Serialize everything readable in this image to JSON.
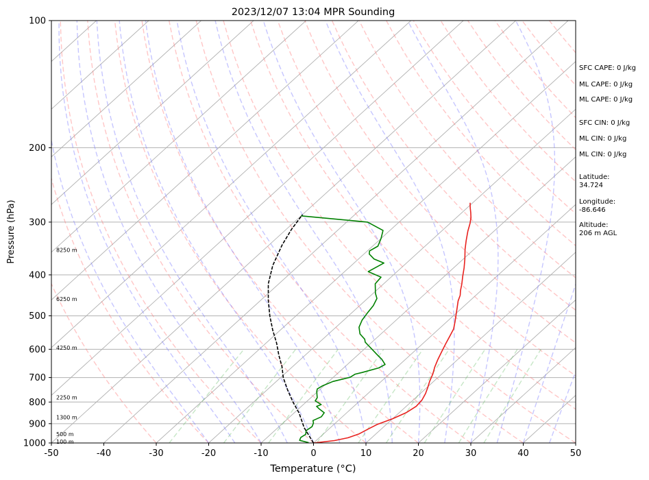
{
  "chart_data": {
    "type": "line",
    "title": "2023/12/07 13:04 MPR Sounding",
    "xlabel": "Temperature (°C)",
    "ylabel": "Pressure (hPa)",
    "xlim": [
      -50,
      50
    ],
    "ylim": [
      1000,
      100
    ],
    "y_scale": "log",
    "x_ticks": [
      -50,
      -40,
      -30,
      -20,
      -10,
      0,
      10,
      20,
      30,
      40,
      50
    ],
    "y_ticks": [
      100,
      200,
      300,
      400,
      500,
      600,
      700,
      800,
      900,
      1000
    ],
    "grid": true,
    "height_labels": [
      {
        "text": "8250 m",
        "p": 349
      },
      {
        "text": "6250 m",
        "p": 456
      },
      {
        "text": "4250 m",
        "p": 595
      },
      {
        "text": "2250 m",
        "p": 780
      },
      {
        "text": "1300 m",
        "p": 870
      },
      {
        "text": "500 m",
        "p": 952
      },
      {
        "text": "100 m",
        "p": 993
      }
    ],
    "series": [
      {
        "color": "#e8201d",
        "points": [
          [
            -20.5,
            270
          ],
          [
            -19.5,
            277
          ],
          [
            -18.3,
            285
          ],
          [
            -17.2,
            293
          ],
          [
            -16.2,
            302
          ],
          [
            -15.0,
            315
          ],
          [
            -13.3,
            332
          ],
          [
            -11.7,
            348
          ],
          [
            -9.7,
            367
          ],
          [
            -8.0,
            385
          ],
          [
            -6.5,
            403
          ],
          [
            -5.0,
            421
          ],
          [
            -3.9,
            436
          ],
          [
            -3.0,
            447
          ],
          [
            -2.2,
            461
          ],
          [
            -1.0,
            478
          ],
          [
            0.3,
            497
          ],
          [
            1.6,
            517
          ],
          [
            2.8,
            537
          ],
          [
            3.5,
            556
          ],
          [
            4.4,
            582
          ],
          [
            5.3,
            608
          ],
          [
            6.2,
            634
          ],
          [
            7.2,
            661
          ],
          [
            8.3,
            687
          ],
          [
            9.2,
            714
          ],
          [
            10.2,
            740
          ],
          [
            11.0,
            764
          ],
          [
            11.7,
            792
          ],
          [
            11.9,
            819
          ],
          [
            11.3,
            848
          ],
          [
            10.0,
            876
          ],
          [
            8.3,
            903
          ],
          [
            7.5,
            927
          ],
          [
            6.8,
            951
          ],
          [
            5.5,
            972
          ],
          [
            3.5,
            987
          ],
          [
            0.5,
            998
          ],
          [
            0.0,
            1000
          ]
        ]
      },
      {
        "color": "#008000",
        "points": [
          [
            -50.0,
            290
          ],
          [
            -36.0,
            300
          ],
          [
            -31.3,
            314
          ],
          [
            -30.0,
            328
          ],
          [
            -29.0,
            342
          ],
          [
            -29.6,
            351
          ],
          [
            -29.0,
            357
          ],
          [
            -27.0,
            367
          ],
          [
            -24.3,
            375
          ],
          [
            -25.5,
            393
          ],
          [
            -21.9,
            405
          ],
          [
            -21.6,
            420
          ],
          [
            -20.5,
            432
          ],
          [
            -19.6,
            442
          ],
          [
            -18.2,
            455
          ],
          [
            -17.4,
            473
          ],
          [
            -17.0,
            492
          ],
          [
            -16.5,
            512
          ],
          [
            -15.6,
            532
          ],
          [
            -14.0,
            552
          ],
          [
            -12.0,
            568
          ],
          [
            -11.3,
            577
          ],
          [
            -10.2,
            586
          ],
          [
            -8.5,
            600
          ],
          [
            -6.5,
            617
          ],
          [
            -4.5,
            634
          ],
          [
            -2.8,
            652
          ],
          [
            -3.3,
            664
          ],
          [
            -5.5,
            681
          ],
          [
            -6.5,
            687
          ],
          [
            -6.8,
            699
          ],
          [
            -9.2,
            715
          ],
          [
            -10.3,
            733
          ],
          [
            -10.6,
            745
          ],
          [
            -10.2,
            755
          ],
          [
            -9.5,
            768
          ],
          [
            -8.8,
            781
          ],
          [
            -8.5,
            795
          ],
          [
            -6.6,
            811
          ],
          [
            -7.1,
            819
          ],
          [
            -6.1,
            830
          ],
          [
            -4.3,
            848
          ],
          [
            -4.0,
            867
          ],
          [
            -4.8,
            885
          ],
          [
            -4.2,
            897
          ],
          [
            -3.7,
            915
          ],
          [
            -4.0,
            935
          ],
          [
            -3.3,
            954
          ],
          [
            -3.6,
            970
          ],
          [
            -3.2,
            986
          ],
          [
            -1.0,
            998
          ]
        ]
      },
      {
        "color": "#000000",
        "dash": true,
        "points": [
          [
            0.0,
            1000
          ],
          [
            -5.0,
            920
          ],
          [
            -9.0,
            850
          ],
          [
            -12.5,
            800
          ],
          [
            -16.0,
            750
          ],
          [
            -19.5,
            700
          ],
          [
            -22.0,
            660
          ],
          [
            -25.0,
            620
          ],
          [
            -28.0,
            580
          ],
          [
            -31.5,
            540
          ],
          [
            -35.0,
            500
          ],
          [
            -38.5,
            460
          ],
          [
            -42.0,
            420
          ],
          [
            -45.0,
            380
          ],
          [
            -47.5,
            340
          ],
          [
            -49.0,
            312
          ],
          [
            -50.0,
            288
          ]
        ]
      }
    ]
  },
  "info": [
    "SFC CAPE: 0 J/kg",
    "ML CAPE: 0 J/kg",
    "ML CAPE: 0 J/kg",
    "SFC CIN: 0 J/kg",
    "ML CIN: 0 J/kg",
    "ML CIN: 0 J/kg",
    "Latitude:",
    "34.724",
    "Longitude:",
    "-86.646",
    "Altitude:",
    "206 m AGL"
  ],
  "colors": {
    "isotherm": "#b0b0b0",
    "dry_adiabat": "#ff8080",
    "moist_adiabat": "#8080ff",
    "mixing_ratio": "#70c070"
  }
}
